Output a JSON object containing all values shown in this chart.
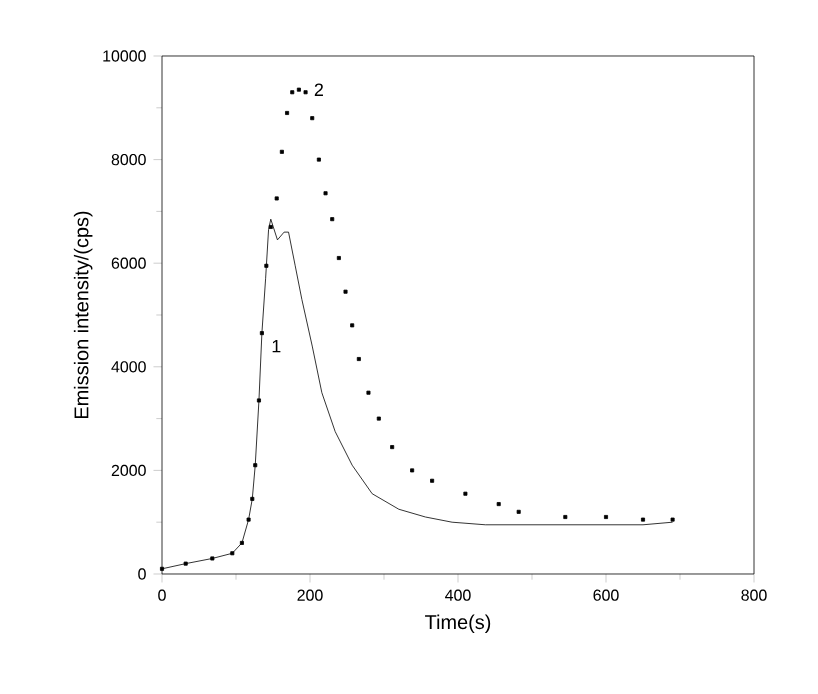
{
  "chart_data": {
    "type": "line",
    "xlabel": "Time(s)",
    "ylabel": "Emission intensity/(cps)",
    "xlim": [
      0,
      800
    ],
    "xticks": [
      0,
      200,
      400,
      600,
      800
    ],
    "ylim": [
      0,
      10000
    ],
    "yticks": [
      0,
      2000,
      4000,
      6000,
      8000,
      10000
    ],
    "grid": false,
    "series": [
      {
        "color": "#000000",
        "marker": "none",
        "line_style": "solid",
        "x": [
          0,
          32,
          68,
          95,
          108,
          117,
          122,
          126,
          131,
          135,
          140,
          144,
          147,
          156,
          165,
          171,
          180,
          189,
          203,
          216,
          234,
          257,
          284,
          320,
          356,
          392,
          437,
          482,
          545,
          600,
          650,
          690
        ],
        "values": [
          100,
          200,
          300,
          400,
          600,
          1050,
          1450,
          2100,
          3350,
          4650,
          5700,
          6650,
          6850,
          6450,
          6600,
          6600,
          5950,
          5300,
          4400,
          3500,
          2750,
          2100,
          1550,
          1250,
          1100,
          1000,
          950,
          950,
          950,
          950,
          950,
          1000
        ]
      },
      {
        "type": "scatter",
        "color": "#000000",
        "marker": "square",
        "x": [
          0,
          32,
          68,
          95,
          108,
          117,
          122,
          126,
          131,
          135,
          141,
          147,
          155,
          162,
          169,
          176,
          185,
          194,
          203,
          212,
          221,
          230,
          239,
          248,
          257,
          266,
          279,
          293,
          311,
          338,
          365,
          410,
          455,
          482,
          545,
          600,
          650,
          690
        ],
        "values": [
          100,
          200,
          300,
          400,
          600,
          1050,
          1450,
          2100,
          3350,
          4650,
          5950,
          6700,
          7250,
          8150,
          8900,
          9300,
          9350,
          9300,
          8800,
          8000,
          7350,
          6850,
          6100,
          5450,
          4800,
          4150,
          3500,
          3000,
          2450,
          2000,
          1800,
          1550,
          1350,
          1200,
          1100,
          1100,
          1050,
          1050
        ]
      }
    ],
    "annotations": [
      "1",
      "2"
    ]
  }
}
